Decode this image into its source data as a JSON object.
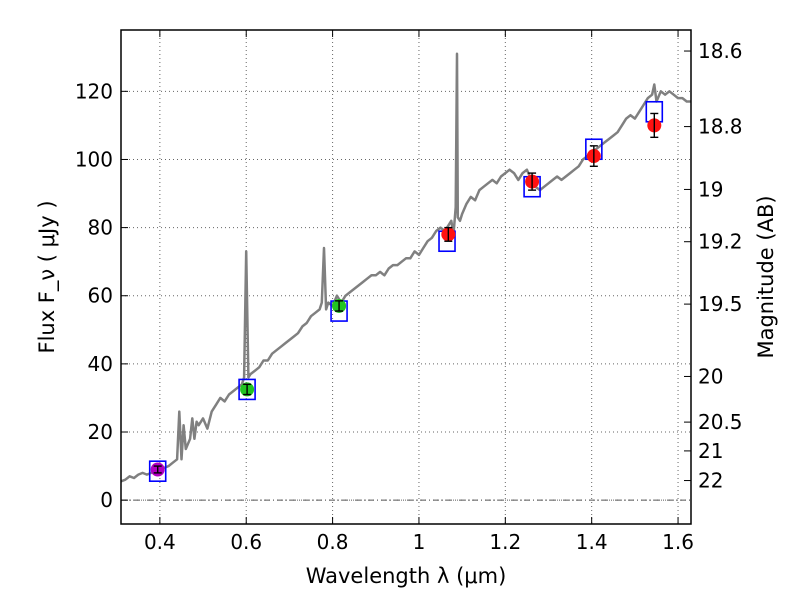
{
  "chart_data": {
    "type": "line",
    "title": "",
    "xlabel": "Wavelength  λ (μm)",
    "ylabel": "Flux  F_ν  ( μJy )",
    "ylabel_right": "Magnitude (AB)",
    "xlim": [
      0.31,
      1.63
    ],
    "ylim": [
      -7,
      138
    ],
    "x_ticks": [
      {
        "value": 0.4,
        "label": "0.4"
      },
      {
        "value": 0.6,
        "label": "0.6"
      },
      {
        "value": 0.8,
        "label": "0.8"
      },
      {
        "value": 1.0,
        "label": "1"
      },
      {
        "value": 1.2,
        "label": "1.2"
      },
      {
        "value": 1.4,
        "label": "1.4"
      },
      {
        "value": 1.6,
        "label": "1.6"
      }
    ],
    "y_ticks": [
      {
        "value": 0,
        "label": "0"
      },
      {
        "value": 20,
        "label": "20"
      },
      {
        "value": 40,
        "label": "40"
      },
      {
        "value": 60,
        "label": "60"
      },
      {
        "value": 80,
        "label": "80"
      },
      {
        "value": 100,
        "label": "100"
      },
      {
        "value": 120,
        "label": "120"
      }
    ],
    "mag_ticks": [
      {
        "mag": 18.6,
        "label": "18.6"
      },
      {
        "mag": 18.8,
        "label": "18.8"
      },
      {
        "mag": 19.0,
        "label": "19"
      },
      {
        "mag": 19.2,
        "label": "19.2"
      },
      {
        "mag": 19.5,
        "label": "19.5"
      },
      {
        "mag": 20.0,
        "label": "20"
      },
      {
        "mag": 20.5,
        "label": "20.5"
      },
      {
        "mag": 21.0,
        "label": "21"
      },
      {
        "mag": 22.0,
        "label": "22"
      }
    ],
    "grid": true,
    "zero_line": 0,
    "colors": {
      "spectrum": "#808080",
      "model_box": "#0000ff",
      "purple": "#b000c0",
      "green": "#22c422",
      "red": "#ff1111",
      "grid": "#666666",
      "zero_line": "#555555"
    },
    "series": [
      {
        "name": "spectrum",
        "style": "line",
        "x": [
          0.31,
          0.32,
          0.33,
          0.34,
          0.35,
          0.36,
          0.37,
          0.38,
          0.39,
          0.4,
          0.41,
          0.42,
          0.43,
          0.44,
          0.445,
          0.45,
          0.455,
          0.46,
          0.47,
          0.475,
          0.48,
          0.485,
          0.49,
          0.5,
          0.51,
          0.52,
          0.53,
          0.54,
          0.55,
          0.56,
          0.57,
          0.58,
          0.59,
          0.595,
          0.6,
          0.605,
          0.61,
          0.62,
          0.63,
          0.64,
          0.65,
          0.66,
          0.67,
          0.68,
          0.69,
          0.7,
          0.71,
          0.72,
          0.73,
          0.74,
          0.75,
          0.76,
          0.77,
          0.775,
          0.78,
          0.785,
          0.79,
          0.8,
          0.81,
          0.82,
          0.83,
          0.84,
          0.85,
          0.86,
          0.87,
          0.88,
          0.89,
          0.9,
          0.91,
          0.92,
          0.93,
          0.94,
          0.95,
          0.96,
          0.97,
          0.98,
          0.99,
          1.0,
          1.01,
          1.02,
          1.03,
          1.04,
          1.05,
          1.06,
          1.07,
          1.075,
          1.08,
          1.085,
          1.088,
          1.09,
          1.095,
          1.1,
          1.11,
          1.12,
          1.13,
          1.14,
          1.15,
          1.16,
          1.17,
          1.18,
          1.19,
          1.2,
          1.21,
          1.22,
          1.23,
          1.24,
          1.25,
          1.26,
          1.27,
          1.28,
          1.29,
          1.3,
          1.31,
          1.32,
          1.33,
          1.34,
          1.35,
          1.36,
          1.37,
          1.38,
          1.39,
          1.4,
          1.41,
          1.42,
          1.43,
          1.44,
          1.45,
          1.46,
          1.47,
          1.48,
          1.49,
          1.5,
          1.51,
          1.52,
          1.53,
          1.54,
          1.545,
          1.55,
          1.56,
          1.57,
          1.58,
          1.59,
          1.6,
          1.61,
          1.62,
          1.63
        ],
        "y": [
          5.5,
          6,
          7,
          6.5,
          7.5,
          8,
          7.5,
          8,
          8.5,
          9,
          9.5,
          10,
          11,
          12,
          26,
          12,
          22,
          15,
          18,
          24,
          18,
          23,
          22,
          24,
          21,
          26,
          28,
          30,
          29,
          31,
          32,
          33,
          34,
          36,
          73,
          36,
          37,
          38,
          39,
          41,
          41,
          43,
          44,
          45,
          46,
          47,
          48,
          49,
          51,
          52,
          54,
          55,
          56,
          58,
          74,
          56,
          58,
          57,
          60,
          58,
          60,
          61,
          62,
          63,
          64,
          65,
          66,
          66,
          67,
          66,
          68,
          69,
          69,
          70,
          71,
          71,
          73,
          72,
          74,
          76,
          77,
          79,
          80,
          79,
          81,
          82,
          78,
          86,
          131,
          83,
          82,
          84,
          87,
          89,
          88,
          91,
          92,
          93,
          94,
          93,
          95,
          96,
          97,
          96,
          94,
          96,
          97,
          94,
          92,
          91,
          92,
          93,
          94,
          95,
          94,
          95,
          96,
          97,
          98,
          100,
          101,
          102,
          103,
          104,
          105,
          106,
          107,
          108,
          110,
          112,
          113,
          112,
          114,
          116,
          118,
          119,
          122,
          117,
          120,
          119,
          120,
          119,
          118,
          118,
          117,
          117
        ],
        "color": "#808080"
      },
      {
        "name": "model-photometry",
        "style": "open-square",
        "x": [
          0.395,
          0.602,
          0.815,
          1.065,
          1.262,
          1.405,
          1.545
        ],
        "y": [
          8.5,
          32.5,
          55.5,
          76,
          92,
          103,
          114
        ],
        "color": "#0000ff"
      },
      {
        "name": "observed-photometry",
        "style": "filled-circle-errorbar",
        "x": [
          0.395,
          0.602,
          0.815,
          1.068,
          1.262,
          1.405,
          1.545
        ],
        "y": [
          9,
          32.5,
          57,
          78,
          93.5,
          101,
          110
        ],
        "yerr": [
          1.0,
          1.5,
          1.5,
          2.0,
          2.5,
          3.0,
          3.5
        ],
        "colors": [
          "#b000c0",
          "#22c422",
          "#22c422",
          "#ff1111",
          "#ff1111",
          "#ff1111",
          "#ff1111"
        ]
      }
    ]
  }
}
